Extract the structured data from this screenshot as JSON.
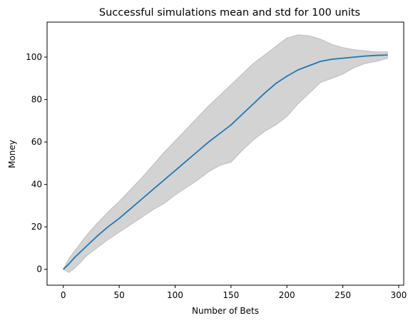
{
  "chart_data": {
    "type": "line",
    "title": "Successful simulations mean and std for 100 units",
    "xlabel": "Number of Bets",
    "ylabel": "Money",
    "xlim": [
      -14.5,
      304.5
    ],
    "ylim": [
      -7.5,
      116.5
    ],
    "xticks": [
      0,
      50,
      100,
      150,
      200,
      250,
      300
    ],
    "yticks": [
      0,
      20,
      40,
      60,
      80,
      100
    ],
    "grid": false,
    "legend": "none",
    "colors": {
      "mean_line": "#1f77b4",
      "std_band": "#d3d3d3",
      "band_edge": "#bdbdbd"
    },
    "series": [
      {
        "role": "mean",
        "x": [
          0,
          5,
          10,
          15,
          20,
          30,
          40,
          50,
          60,
          70,
          80,
          90,
          100,
          110,
          120,
          130,
          140,
          150,
          160,
          170,
          180,
          190,
          200,
          210,
          220,
          230,
          240,
          250,
          260,
          270,
          280,
          290
        ],
        "y": [
          0,
          2.5,
          5.5,
          8,
          10.5,
          15.5,
          20,
          24,
          28.5,
          33,
          37.5,
          42,
          46.5,
          51,
          55.5,
          60,
          64,
          68,
          73,
          78,
          83,
          87.5,
          91,
          94,
          96,
          98,
          99,
          99.5,
          100,
          100.5,
          100.8,
          101
        ]
      },
      {
        "role": "mean+std",
        "x": [
          0,
          5,
          10,
          15,
          20,
          30,
          40,
          50,
          60,
          70,
          80,
          90,
          100,
          110,
          120,
          130,
          140,
          150,
          160,
          170,
          180,
          190,
          200,
          210,
          220,
          230,
          240,
          250,
          260,
          270,
          280,
          290
        ],
        "y": [
          0,
          5,
          8.5,
          12,
          15.5,
          21.5,
          27,
          32,
          37.5,
          43,
          49,
          55,
          60.5,
          66,
          71.5,
          77,
          82,
          87,
          92,
          97,
          101,
          105,
          109,
          110.5,
          110,
          108.5,
          106,
          104.5,
          103.5,
          103,
          102.5,
          102.5
        ]
      },
      {
        "role": "mean-std",
        "x": [
          0,
          5,
          10,
          15,
          20,
          30,
          40,
          50,
          60,
          70,
          80,
          90,
          100,
          110,
          120,
          130,
          140,
          150,
          160,
          170,
          180,
          190,
          200,
          210,
          220,
          230,
          240,
          250,
          260,
          270,
          280,
          290
        ],
        "y": [
          0,
          -1.5,
          0.5,
          3,
          6,
          10,
          14,
          17.5,
          21,
          24.5,
          28,
          31,
          35,
          38.5,
          42,
          46,
          49,
          50.5,
          56,
          61,
          65,
          68,
          72,
          78,
          83,
          88,
          90,
          92,
          95,
          97,
          98,
          99.5
        ]
      }
    ]
  }
}
